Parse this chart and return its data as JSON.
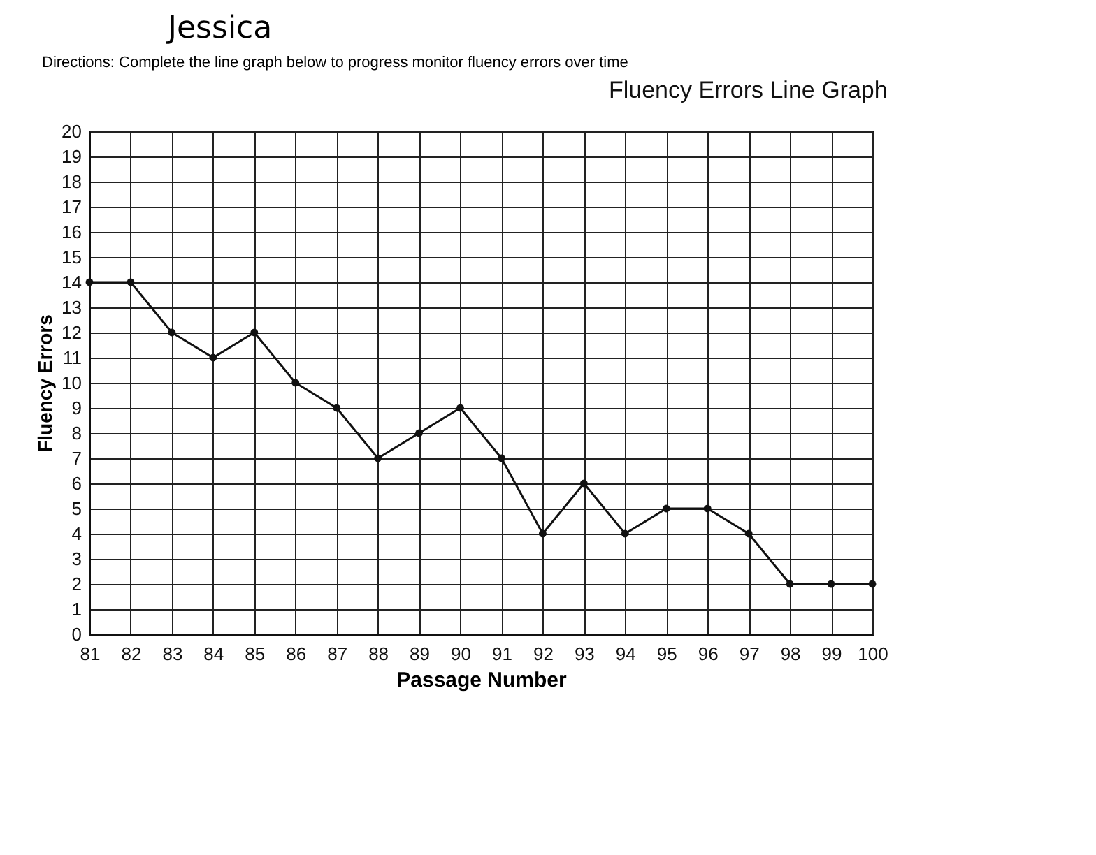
{
  "chart_data": {
    "type": "line",
    "title": "Fluency Errors Line Graph",
    "xlabel": "Passage Number",
    "ylabel": "Fluency Errors",
    "annotations": [
      "Jessica",
      "Directions: Complete the line graph below to progress monitor fluency errors over time"
    ],
    "x": [
      81,
      82,
      83,
      84,
      85,
      86,
      87,
      88,
      89,
      90,
      91,
      92,
      93,
      94,
      95,
      96,
      97,
      98,
      99,
      100
    ],
    "series": [
      {
        "color": "#111111",
        "values": [
          14,
          14,
          12,
          11,
          12,
          10,
          9,
          7,
          8,
          9,
          7,
          4,
          6,
          4,
          5,
          5,
          4,
          2,
          2,
          2
        ]
      }
    ],
    "xlim": [
      81,
      100
    ],
    "xticks": [
      81,
      82,
      83,
      84,
      85,
      86,
      87,
      88,
      89,
      90,
      91,
      92,
      93,
      94,
      95,
      96,
      97,
      98,
      99,
      100
    ],
    "ylim": [
      0,
      20
    ],
    "yticks": [
      0,
      1,
      2,
      3,
      4,
      5,
      6,
      7,
      8,
      9,
      10,
      11,
      12,
      13,
      14,
      15,
      16,
      17,
      18,
      19,
      20
    ],
    "grid": true,
    "marker": "circle",
    "line_style": "solid"
  }
}
